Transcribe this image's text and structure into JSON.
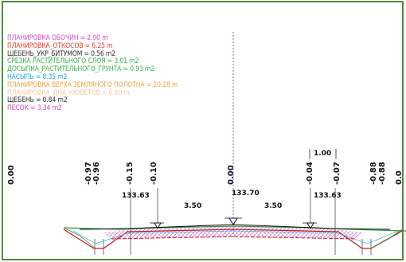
{
  "legend": {
    "items": [
      {
        "text": "ПЛАНИРОВКА ОБОЧИН = 2.00 m",
        "color": "#d34fc0"
      },
      {
        "text": "ПЛАНИРОВКА_ОТКОСОВ = 6.25 m",
        "color": "#e63c2f"
      },
      {
        "text": "ЩЕБЕНЬ_УКР_БИТУМОМ = 0.56 m2",
        "color": "#333333"
      },
      {
        "text": "СРЕЗКА РАСТИТЕЛЬНОГО СЛОЯ = 3.01 m2",
        "color": "#3ab54a"
      },
      {
        "text": "ДОСЫПКА_РАСТИТЕЛЬНОГО_ГРУНТА = 0.93 m2",
        "color": "#3ab54a"
      },
      {
        "text": "НАСЫПЬ = 8.35 m2",
        "color": "#1aa8d8"
      },
      {
        "text": "ПЛАНИРОВКА ВЕРХА ЗЕМЛЯНОГО ПОЛОТНА = 10.28 m",
        "color": "#f0a040"
      },
      {
        "text": "ПЛАНИРОВКА_ДНА_КЮВЕТОВ = 0.80 m",
        "color": "#f6c9a0"
      },
      {
        "text": "ЩЕБЕНЬ = 0.84 m2",
        "color": "#333333"
      },
      {
        "text": "ПЕСОК = 3.34 m2",
        "color": "#d34fc0"
      }
    ]
  },
  "offsets": [
    "0.00",
    "-0.97",
    "-0.96",
    "-0.15",
    "-0.10",
    "0.00",
    "-0.04",
    "-0.07",
    "-0.88",
    "-0.88",
    "0.0"
  ],
  "elevations": {
    "left": "133.63",
    "center": "133.70",
    "right": "133.63"
  },
  "lane_widths": {
    "left": "3.50",
    "right": "3.50"
  },
  "shoulder_dim": "1.00",
  "colors": {
    "frame": "#4d8c3a",
    "axis": "#7070d8",
    "ground_line": "#2f9e3a",
    "subgrade": "#c02020",
    "hatch": "#d34fc0",
    "embankment": "#3cb8e0"
  }
}
